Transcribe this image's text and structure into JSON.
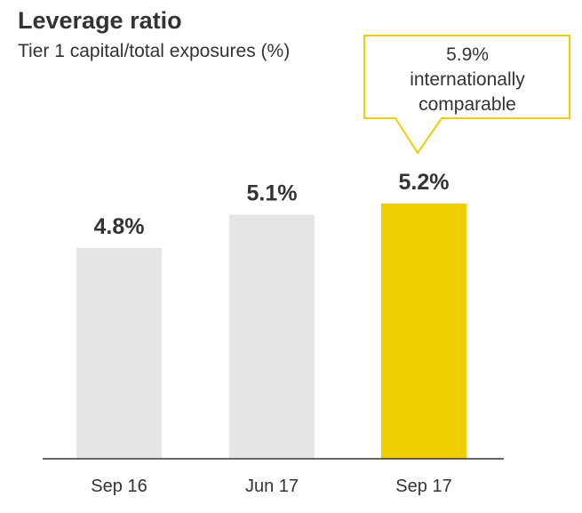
{
  "chart_data": {
    "type": "bar",
    "title": "Leverage ratio",
    "subtitle": "Tier 1 capital/total exposures (%)",
    "categories": [
      "Sep 16",
      "Jun 17",
      "Sep 17"
    ],
    "values": [
      4.8,
      5.1,
      5.2
    ],
    "value_labels": [
      "4.8%",
      "5.1%",
      "5.2%"
    ],
    "bar_colors": [
      "#e6e5e5",
      "#e6e5e5",
      "#f0cd00"
    ],
    "annotation": {
      "lines": [
        "5.9%",
        "internationally",
        "comparable"
      ],
      "target_category": "Sep 17",
      "border_color": "#f0cd00"
    },
    "xlabel": "",
    "ylabel": "",
    "ylim": [
      2.9,
      5.45
    ],
    "grid": false,
    "legend": "none"
  }
}
